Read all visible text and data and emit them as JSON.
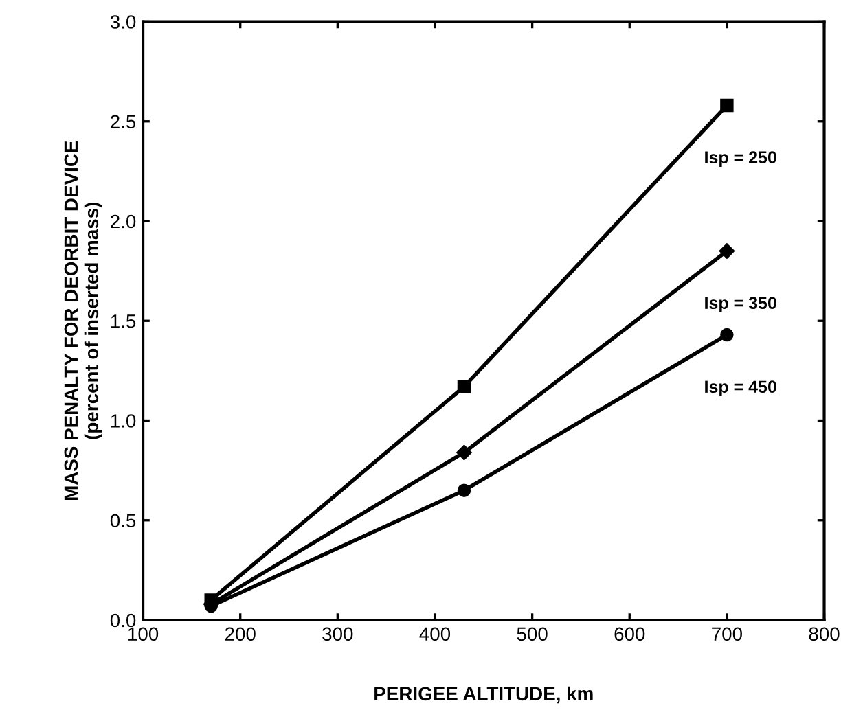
{
  "chart_data": {
    "type": "line",
    "xlabel": "PERIGEE ALTITUDE, km",
    "ylabel": "MASS PENALTY FOR DEORBIT DEVICE\n(percent of inserted mass)",
    "x": [
      170,
      430,
      700
    ],
    "series": [
      {
        "name": "Isp = 250",
        "color": "#000000",
        "marker": "square",
        "values": [
          0.1,
          1.17,
          2.58
        ]
      },
      {
        "name": "Isp = 350",
        "color": "#000000",
        "marker": "diamond",
        "values": [
          0.08,
          0.84,
          1.85
        ]
      },
      {
        "name": "Isp = 450",
        "color": "#000000",
        "marker": "circle",
        "values": [
          0.07,
          0.65,
          1.43
        ]
      }
    ],
    "xlim": [
      100,
      800
    ],
    "xticks": [
      100,
      200,
      300,
      400,
      500,
      600,
      700,
      800
    ],
    "ylim": [
      0,
      3.0
    ],
    "yticks": [
      {
        "value": 0,
        "label": "0.0"
      },
      0.5,
      {
        "value": 1,
        "label": "1.0"
      },
      1.5,
      {
        "value": 2,
        "label": "2.0"
      },
      2.5,
      {
        "value": 3,
        "label": "3.0"
      }
    ],
    "grid": false,
    "line_style": "solid"
  }
}
